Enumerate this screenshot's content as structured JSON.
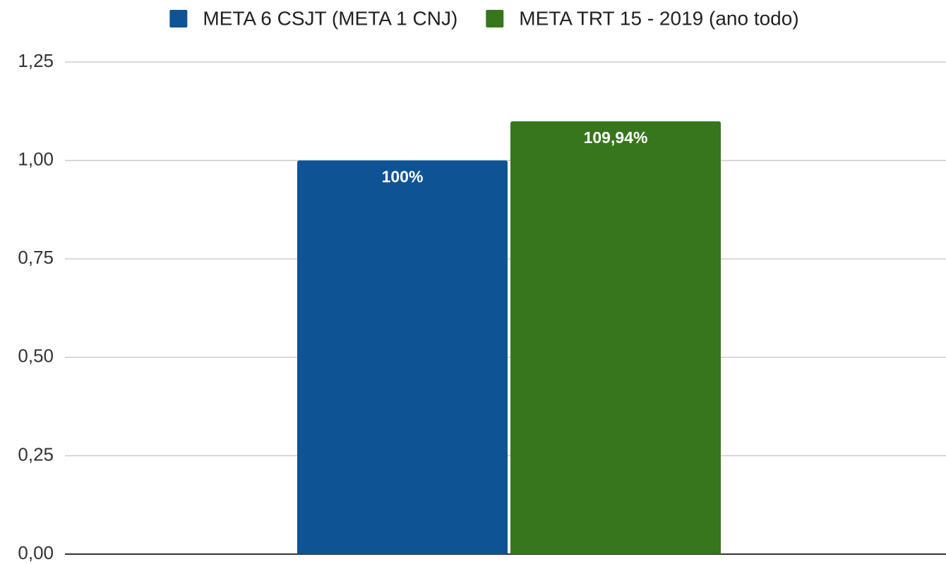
{
  "chart_data": {
    "type": "bar",
    "categories": [
      null
    ],
    "series": [
      {
        "name": "META 6 CSJT (META 1 CNJ)",
        "color": "#0e5394",
        "values": [
          1.0
        ],
        "value_labels": [
          "100%"
        ]
      },
      {
        "name": "META TRT 15 - 2019 (ano todo)",
        "color": "#38761d",
        "values": [
          1.0994
        ],
        "value_labels": [
          "109,94%"
        ]
      }
    ],
    "ylim": [
      0,
      1.25
    ],
    "yticks": [
      {
        "value": 0,
        "label": "0,00"
      },
      {
        "value": 0.25,
        "label": "0,25"
      },
      {
        "value": 0.5,
        "label": "0,50"
      },
      {
        "value": 0.75,
        "label": "0,75"
      },
      {
        "value": 1,
        "label": "1,00"
      },
      {
        "value": 1.25,
        "label": "1,25"
      }
    ],
    "grid": true,
    "legend": "top"
  }
}
